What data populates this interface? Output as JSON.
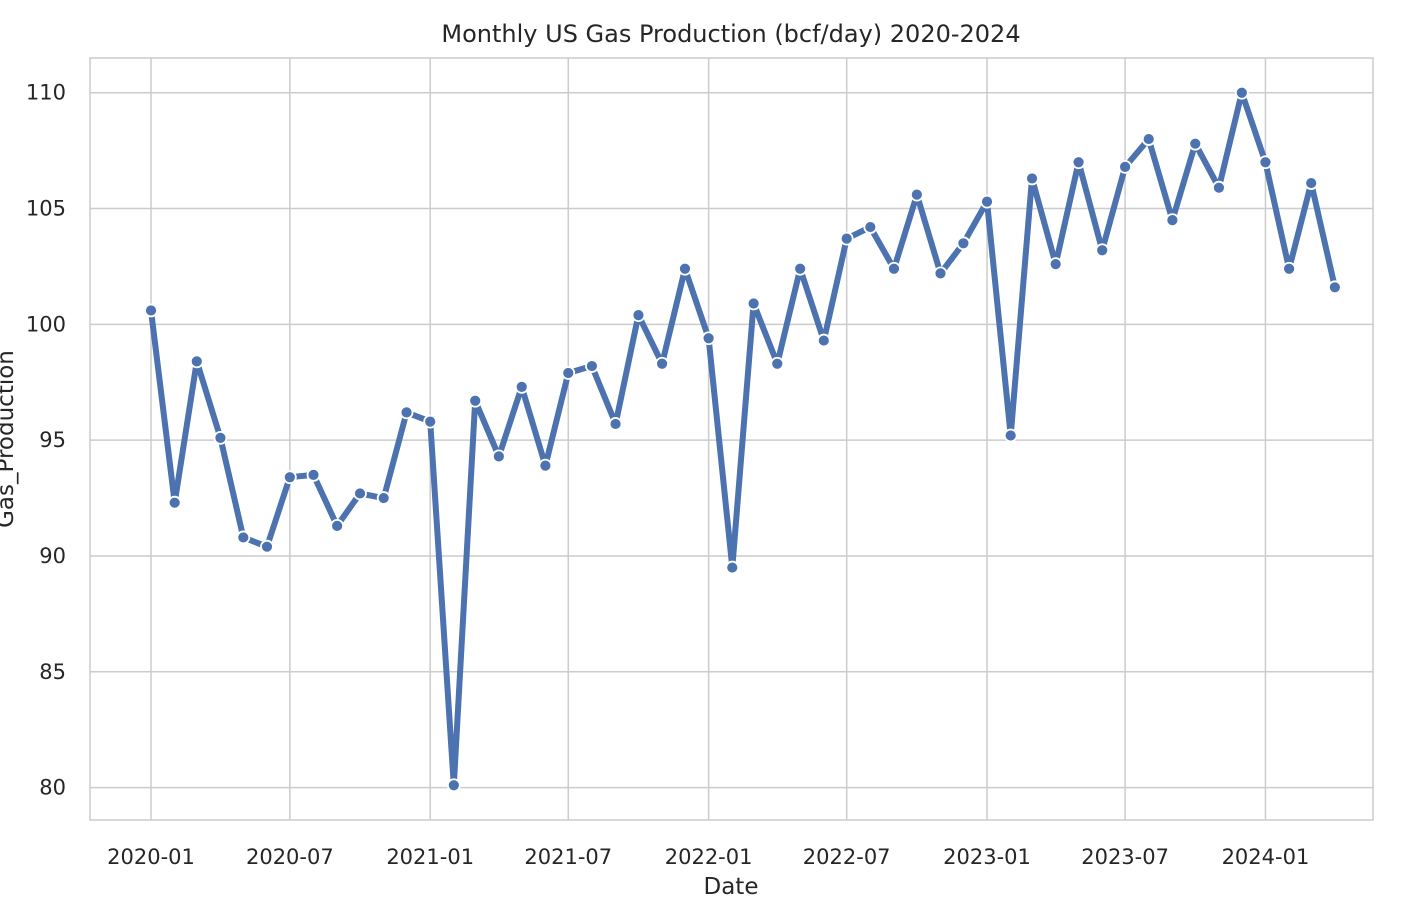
{
  "chart_data": {
    "type": "line",
    "title": "Monthly US Gas Production (bcf/day) 2020-2024",
    "xlabel": "Date",
    "ylabel": "Gas_Production",
    "grid": true,
    "ylim": [
      78.6,
      111.5
    ],
    "xlim": [
      "2019-10-13",
      "2024-05-21"
    ],
    "x_ticks": [
      "2020-01",
      "2020-07",
      "2021-01",
      "2021-07",
      "2022-01",
      "2022-07",
      "2023-01",
      "2023-07",
      "2024-01"
    ],
    "y_ticks": [
      80,
      85,
      90,
      95,
      100,
      105,
      110
    ],
    "series": [
      {
        "color": "#4c72b0",
        "marker": "circle",
        "x": [
          "2020-01",
          "2020-02",
          "2020-03",
          "2020-04",
          "2020-05",
          "2020-06",
          "2020-07",
          "2020-08",
          "2020-09",
          "2020-10",
          "2020-11",
          "2020-12",
          "2021-01",
          "2021-02",
          "2021-03",
          "2021-04",
          "2021-05",
          "2021-06",
          "2021-07",
          "2021-08",
          "2021-09",
          "2021-10",
          "2021-11",
          "2021-12",
          "2022-01",
          "2022-02",
          "2022-03",
          "2022-04",
          "2022-05",
          "2022-06",
          "2022-07",
          "2022-08",
          "2022-09",
          "2022-10",
          "2022-11",
          "2022-12",
          "2023-01",
          "2023-02",
          "2023-03",
          "2023-04",
          "2023-05",
          "2023-06",
          "2023-07",
          "2023-08",
          "2023-09",
          "2023-10",
          "2023-11",
          "2023-12",
          "2024-01",
          "2024-02",
          "2024-03",
          "2024-04"
        ],
        "values": [
          100.6,
          92.3,
          98.4,
          95.1,
          90.8,
          90.4,
          93.4,
          93.5,
          91.3,
          92.7,
          92.5,
          96.2,
          95.8,
          80.1,
          96.7,
          94.3,
          97.3,
          93.9,
          97.9,
          98.2,
          95.7,
          100.4,
          98.3,
          102.4,
          99.4,
          89.5,
          100.9,
          98.3,
          102.4,
          99.3,
          103.7,
          104.2,
          102.4,
          105.6,
          102.2,
          103.5,
          105.3,
          95.2,
          106.3,
          102.6,
          107.0,
          103.2,
          106.8,
          108.0,
          104.5,
          107.8,
          105.9,
          110.0,
          107.0,
          102.4,
          106.1,
          101.6
        ]
      }
    ]
  }
}
